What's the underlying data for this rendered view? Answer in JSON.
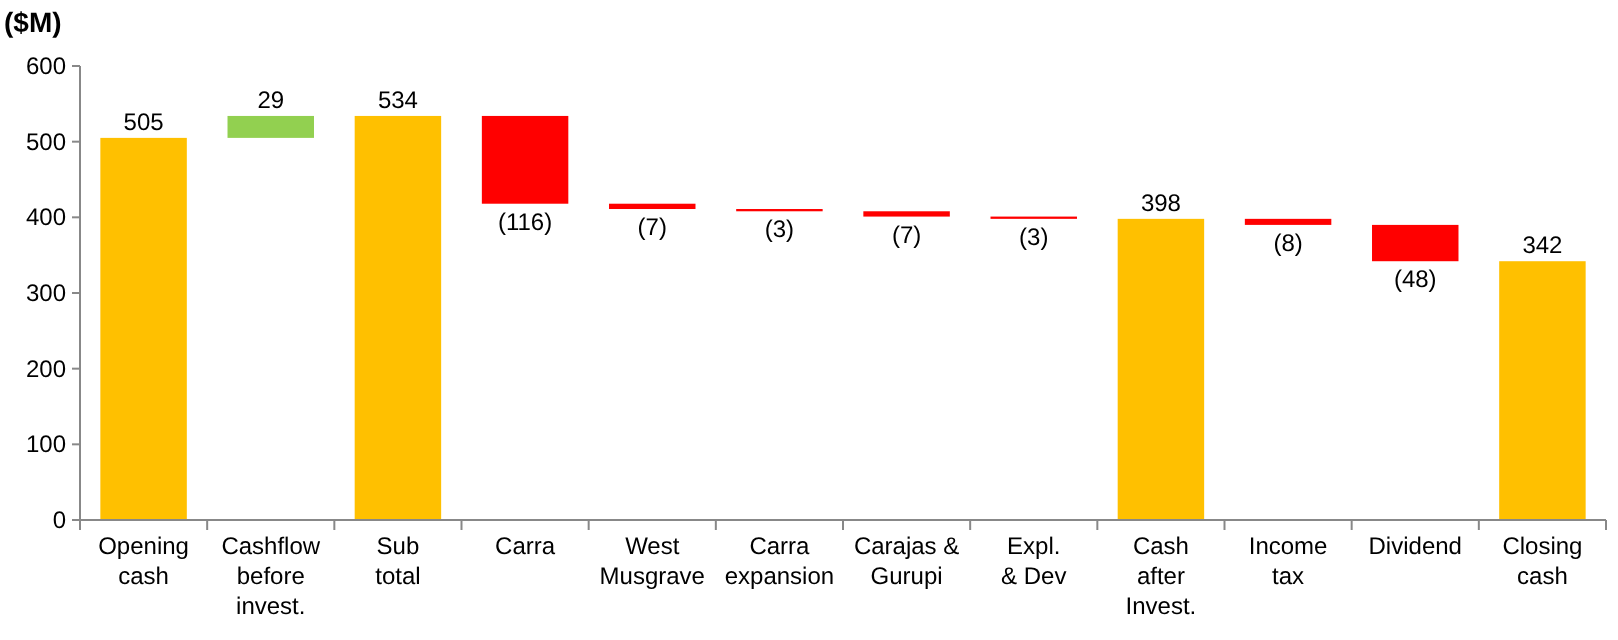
{
  "chart_data": {
    "type": "bar",
    "ylabel": "($M)",
    "categories": [
      "Opening\ncash",
      "Cashflow\nbefore\ninvest.",
      "Sub\ntotal",
      "Carra",
      "West\nMusgrave",
      "Carra\nexpansion",
      "Carajas &\nGurupi",
      "Expl.\n& Dev",
      "Cash\nafter\nInvest.",
      "Income\ntax",
      "Dividend",
      "Closing\ncash"
    ],
    "values": [
      505,
      29,
      534,
      -116,
      -7,
      -3,
      -7,
      -3,
      398,
      -8,
      -48,
      342
    ],
    "base": [
      0,
      505,
      0,
      534,
      418,
      411,
      408,
      401,
      0,
      398,
      390,
      0
    ],
    "colors": [
      "#ffc000",
      "#92d050",
      "#ffc000",
      "#ff0000",
      "#ff0000",
      "#ff0000",
      "#ff0000",
      "#ff0000",
      "#ffc000",
      "#ff0000",
      "#ff0000",
      "#ffc000"
    ],
    "value_labels": [
      "505",
      "29",
      "534",
      "(116)",
      "(7)",
      "(3)",
      "(7)",
      "(3)",
      "398",
      "(8)",
      "(48)",
      "342"
    ],
    "ylim": [
      0,
      600
    ],
    "yticks": [
      0,
      100,
      200,
      300,
      400,
      500,
      600
    ],
    "grid": false
  }
}
